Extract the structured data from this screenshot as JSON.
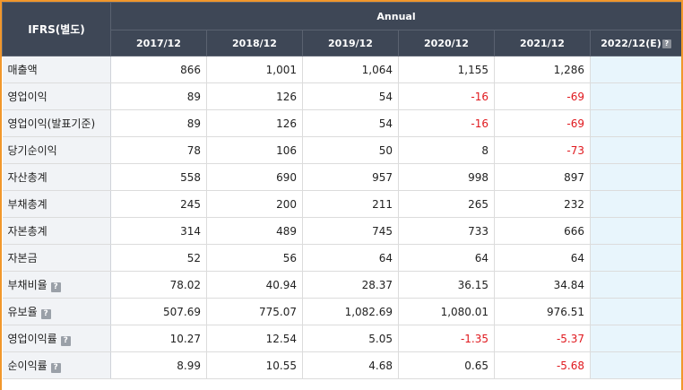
{
  "table": {
    "corner_label": "IFRS(별도)",
    "group_label": "Annual",
    "years": [
      "2017/12",
      "2018/12",
      "2019/12",
      "2020/12",
      "2021/12",
      "2022/12(E)"
    ],
    "estimate_help": "?",
    "rows": [
      {
        "label": "매출액",
        "help": false,
        "values": [
          "866",
          "1,001",
          "1,064",
          "1,155",
          "1,286",
          ""
        ]
      },
      {
        "label": "영업이익",
        "help": false,
        "values": [
          "89",
          "126",
          "54",
          "-16",
          "-69",
          ""
        ]
      },
      {
        "label": "영업이익(발표기준)",
        "help": false,
        "values": [
          "89",
          "126",
          "54",
          "-16",
          "-69",
          ""
        ]
      },
      {
        "label": "당기순이익",
        "help": false,
        "values": [
          "78",
          "106",
          "50",
          "8",
          "-73",
          ""
        ]
      },
      {
        "label": "자산총계",
        "help": false,
        "values": [
          "558",
          "690",
          "957",
          "998",
          "897",
          ""
        ]
      },
      {
        "label": "부채총계",
        "help": false,
        "values": [
          "245",
          "200",
          "211",
          "265",
          "232",
          ""
        ]
      },
      {
        "label": "자본총계",
        "help": false,
        "values": [
          "314",
          "489",
          "745",
          "733",
          "666",
          ""
        ]
      },
      {
        "label": "자본금",
        "help": false,
        "values": [
          "52",
          "56",
          "64",
          "64",
          "64",
          ""
        ]
      },
      {
        "label": "부채비율",
        "help": true,
        "values": [
          "78.02",
          "40.94",
          "28.37",
          "36.15",
          "34.84",
          ""
        ]
      },
      {
        "label": "유보율",
        "help": true,
        "values": [
          "507.69",
          "775.07",
          "1,082.69",
          "1,080.01",
          "976.51",
          ""
        ]
      },
      {
        "label": "영업이익률",
        "help": true,
        "values": [
          "10.27",
          "12.54",
          "5.05",
          "-1.35",
          "-5.37",
          ""
        ]
      },
      {
        "label": "순이익률",
        "help": true,
        "values": [
          "8.99",
          "10.55",
          "4.68",
          "0.65",
          "-5.68",
          ""
        ]
      }
    ],
    "colors": {
      "header_bg": "#3e4756",
      "negative": "#e0191e",
      "estimate_bg": "#e8f5fc",
      "frame": "#f1972c"
    }
  }
}
